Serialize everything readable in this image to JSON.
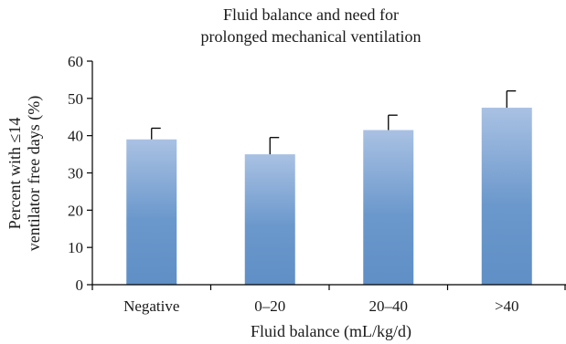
{
  "chart_data": {
    "type": "bar",
    "title": [
      "Fluid balance and need for",
      "prolonged mechanical ventilation"
    ],
    "xlabel": "Fluid balance (mL/kg/d)",
    "ylabel": [
      "Percent with ≤14",
      "ventilator free days (%)"
    ],
    "ylim": [
      0,
      60
    ],
    "yticks": [
      0,
      10,
      20,
      30,
      40,
      50,
      60
    ],
    "categories": [
      "Negative",
      "0–20",
      "20–40",
      ">40"
    ],
    "values": [
      39,
      35,
      41.5,
      47.5
    ],
    "error_upper": [
      42,
      39.5,
      45.5,
      52
    ],
    "bar_color_top": "#a9c1e3",
    "bar_color_bottom": "#5f8fc6",
    "grid": false,
    "legend": false
  }
}
